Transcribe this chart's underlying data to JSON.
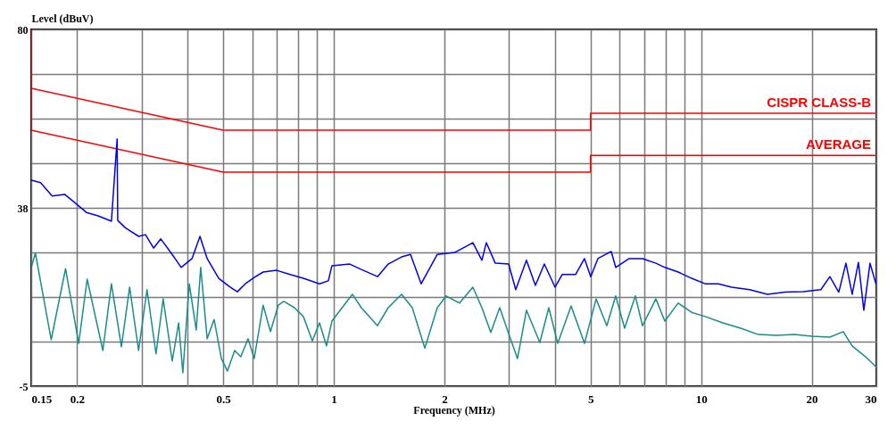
{
  "chart_data": {
    "type": "line",
    "xlabel": "Frequency (MHz)",
    "ylabel": "Level (dBuV)",
    "log": "x",
    "grid": true,
    "xlim": [
      0.15,
      30
    ],
    "ylim": [
      -5,
      80
    ],
    "xticks": [
      0.15,
      0.2,
      {
        "value": 0.3,
        "label": null
      },
      {
        "value": 0.4,
        "label": null
      },
      0.5,
      {
        "value": 0.6,
        "label": null
      },
      {
        "value": 0.7,
        "label": null
      },
      {
        "value": 0.8,
        "label": null
      },
      {
        "value": 0.9,
        "label": null
      },
      1,
      2,
      {
        "value": 3,
        "label": null
      },
      {
        "value": 4,
        "label": null
      },
      5,
      {
        "value": 6,
        "label": null
      },
      {
        "value": 7,
        "label": null
      },
      {
        "value": 8,
        "label": null
      },
      {
        "value": 9,
        "label": null
      },
      10,
      20,
      30
    ],
    "yticks": [
      -5,
      {
        "value": 5.625,
        "label": null
      },
      {
        "value": 16.25,
        "label": null
      },
      {
        "value": 26.875,
        "label": null
      },
      {
        "value": 37.5,
        "label": "38"
      },
      {
        "value": 48.125,
        "label": null
      },
      {
        "value": 58.75,
        "label": null
      },
      {
        "value": 69.375,
        "label": null
      },
      80
    ],
    "series": [
      {
        "name": "CISPR CLASS-B",
        "color": "#ff0000",
        "x": [
          0.15,
          0.15,
          0.5,
          5,
          5,
          30
        ],
        "values": [
          80,
          66,
          56,
          56,
          60,
          60
        ]
      },
      {
        "name": "AVERAGE",
        "color": "#ff0000",
        "x": [
          0.15,
          0.15,
          0.5,
          5,
          5,
          30
        ],
        "values": [
          66,
          56,
          46,
          46,
          50,
          50
        ]
      },
      {
        "color": "#0000ee",
        "x": [
          0.15,
          0.159,
          0.171,
          0.185,
          0.198,
          0.212,
          0.228,
          0.248,
          0.257,
          0.258,
          0.27,
          0.294,
          0.307,
          0.323,
          0.338,
          0.367,
          0.384,
          0.411,
          0.432,
          0.452,
          0.486,
          0.522,
          0.546,
          0.574,
          0.607,
          0.642,
          0.699,
          0.76,
          0.826,
          0.914,
          0.966,
          0.988,
          1.105,
          1.188,
          1.315,
          1.406,
          1.529,
          1.617,
          1.729,
          1.913,
          2.139,
          2.391,
          2.53,
          2.601,
          2.751,
          2.991,
          3.128,
          3.345,
          3.538,
          3.742,
          4.002,
          4.185,
          4.551,
          4.813,
          5.005,
          5.235,
          5.692,
          5.854,
          6.367,
          6.924,
          7.531,
          7.963,
          8.659,
          9.421,
          10.25,
          11.14,
          12.11,
          13.55,
          15.15,
          16.95,
          18.95,
          21.19,
          22.41,
          23.7,
          24.79,
          25.78,
          26.81,
          27.73,
          28.83,
          30
        ],
        "values": [
          44.1,
          43.5,
          40.3,
          40.7,
          38.6,
          36.4,
          35.6,
          34.3,
          53.9,
          34.5,
          32.8,
          30.7,
          31.1,
          27.9,
          30.1,
          25.8,
          23.3,
          25.4,
          30.7,
          25.4,
          20.7,
          18.6,
          17.5,
          19.4,
          20.9,
          22.2,
          22.6,
          21.6,
          20.7,
          19.4,
          20.1,
          23.7,
          24.1,
          22.8,
          21.1,
          24.1,
          25.8,
          26.4,
          19.4,
          26.4,
          26.9,
          29.2,
          25.0,
          29.2,
          24.3,
          24.1,
          18.0,
          25.0,
          19.0,
          24.1,
          18.6,
          21.6,
          21.6,
          25.4,
          21.1,
          25.4,
          27.1,
          23.3,
          25.4,
          25.4,
          24.3,
          23.3,
          22.2,
          20.7,
          19.4,
          19.4,
          18.6,
          18.0,
          16.9,
          17.4,
          17.5,
          18.0,
          21.1,
          17.4,
          24.3,
          16.9,
          24.5,
          13.1,
          24.3,
          19.0
        ]
      },
      {
        "color": "#1a8c8c",
        "x": [
          0.15,
          0.154,
          0.17,
          0.186,
          0.202,
          0.213,
          0.235,
          0.248,
          0.264,
          0.278,
          0.294,
          0.31,
          0.328,
          0.343,
          0.363,
          0.378,
          0.388,
          0.404,
          0.422,
          0.434,
          0.452,
          0.472,
          0.494,
          0.513,
          0.537,
          0.558,
          0.584,
          0.607,
          0.642,
          0.672,
          0.706,
          0.731,
          0.781,
          0.826,
          0.874,
          0.914,
          0.955,
          0.988,
          1.123,
          1.188,
          1.315,
          1.406,
          1.529,
          1.635,
          1.769,
          1.913,
          2.022,
          2.199,
          2.391,
          2.53,
          2.675,
          2.829,
          3.025,
          3.163,
          3.345,
          3.638,
          3.848,
          4.07,
          4.426,
          4.813,
          5.177,
          5.536,
          5.854,
          6.19,
          6.621,
          6.924,
          7.531,
          7.963,
          8.659,
          9.421,
          10.25,
          11.46,
          12.81,
          14.33,
          16.02,
          17.92,
          20.04,
          22.41,
          24.37,
          25.78,
          28.04,
          30
        ],
        "values": [
          23.3,
          26.7,
          6.1,
          23.0,
          5.2,
          20.5,
          3.5,
          19.4,
          4.4,
          18.6,
          3.5,
          18.0,
          2.7,
          15.8,
          1.0,
          10.1,
          -1.8,
          19.4,
          8.4,
          23.3,
          6.3,
          10.9,
          1.6,
          -1.4,
          3.5,
          2.0,
          6.3,
          1.6,
          14.3,
          8.0,
          14.3,
          15.2,
          13.7,
          11.6,
          5.8,
          10.1,
          4.6,
          10.5,
          16.9,
          13.7,
          9.4,
          13.7,
          16.9,
          13.7,
          4.1,
          13.7,
          16.5,
          14.8,
          18.6,
          13.7,
          7.8,
          13.7,
          6.3,
          1.6,
          13.1,
          5.4,
          13.7,
          5.2,
          14.1,
          5.2,
          15.8,
          9.4,
          16.5,
          8.8,
          16.5,
          9.4,
          15.8,
          10.5,
          14.8,
          12.6,
          11.6,
          10.1,
          8.8,
          7.3,
          7.1,
          7.3,
          6.9,
          6.7,
          8.0,
          4.6,
          2.0,
          -0.5
        ]
      }
    ]
  }
}
